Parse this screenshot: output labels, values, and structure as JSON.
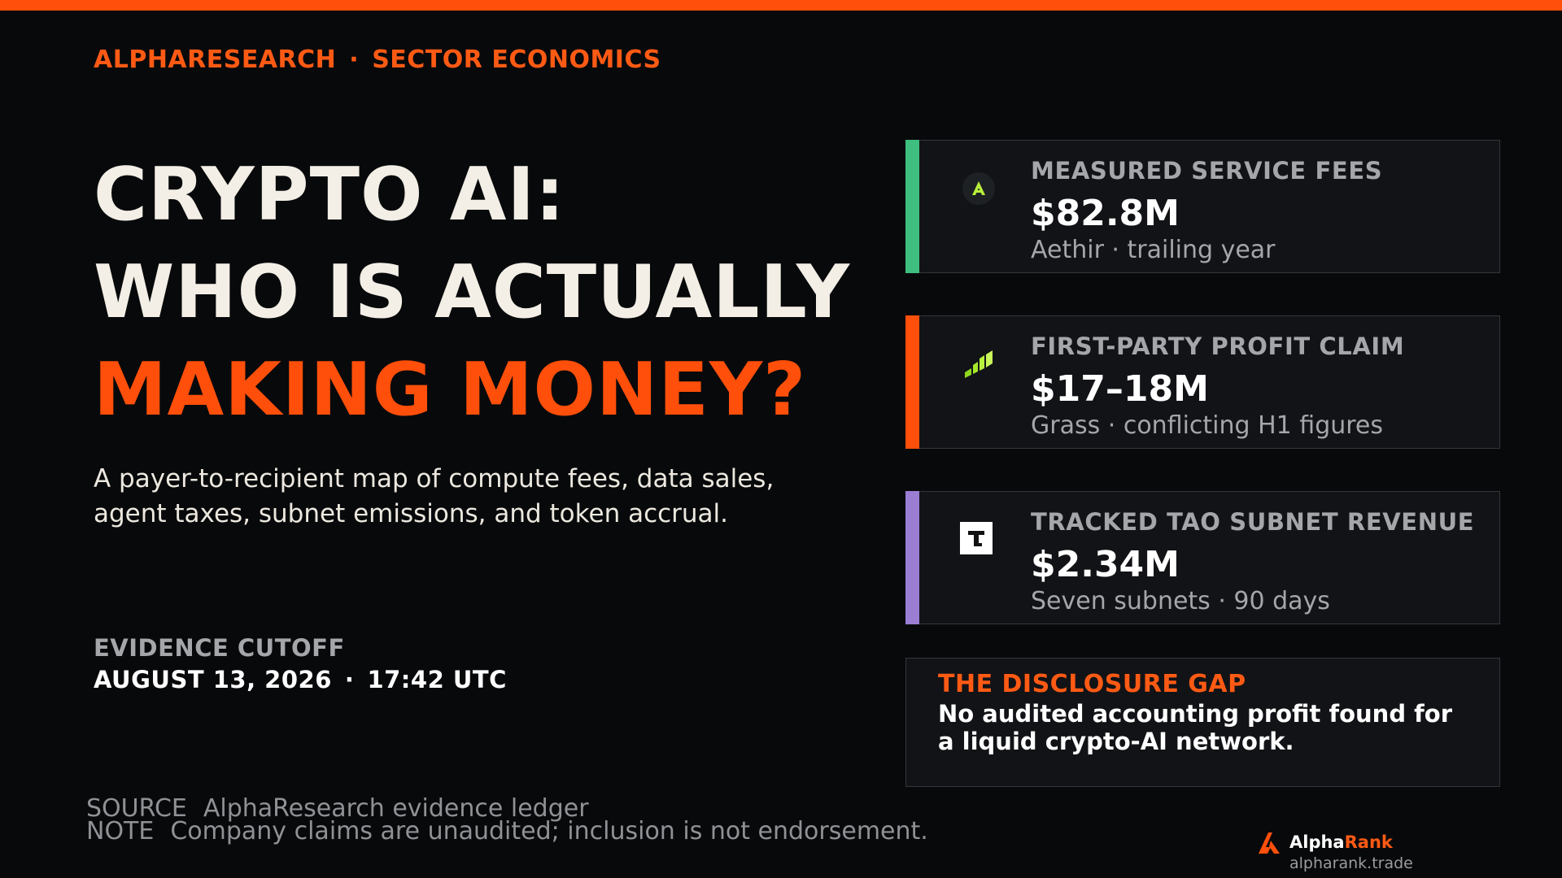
{
  "colors": {
    "accent": "#ff4f0a",
    "background": "#08090b",
    "card_bg": "#121316",
    "stripe_aethir": "#3fbf7f",
    "stripe_grass": "#ff4f0a",
    "stripe_tao": "#9b7dd4"
  },
  "header": {
    "brand": "ALPHARESEARCH",
    "separator": "·",
    "section": "SECTOR ECONOMICS"
  },
  "headline": {
    "line1": "CRYPTO AI:",
    "line2": "WHO IS ACTUALLY",
    "line3": "MAKING MONEY?"
  },
  "subtitle": "A payer-to-recipient map of compute fees, data sales, agent taxes, subnet emissions, and token accrual.",
  "cutoff": {
    "label": "EVIDENCE CUTOFF",
    "date": "AUGUST 13, 2026",
    "separator": "·",
    "time": "17:42 UTC"
  },
  "cards": [
    {
      "label": "MEASURED SERVICE FEES",
      "value": "$82.8M",
      "sub": "Aethir · trailing year",
      "icon": "aethir-icon"
    },
    {
      "label": "FIRST-PARTY PROFIT CLAIM",
      "value": "$17–18M",
      "sub": "Grass · conflicting H1 figures",
      "icon": "grass-icon"
    },
    {
      "label": "TRACKED TAO SUBNET REVENUE",
      "value": "$2.34M",
      "sub": "Seven subnets · 90 days",
      "icon": "tao-icon"
    }
  ],
  "gap": {
    "title": "THE DISCLOSURE GAP",
    "body": "No audited accounting profit found for a liquid crypto-AI network."
  },
  "footer": {
    "source_key": "SOURCE",
    "source_value": "AlphaResearch evidence ledger",
    "note_key": "NOTE",
    "note_value": "Company claims are unaudited; inclusion is not endorsement."
  },
  "brand": {
    "name_part1": "Alpha",
    "name_part2": "Rank",
    "url": "alpharank.trade",
    "icon": "alpharank-logo-icon"
  }
}
